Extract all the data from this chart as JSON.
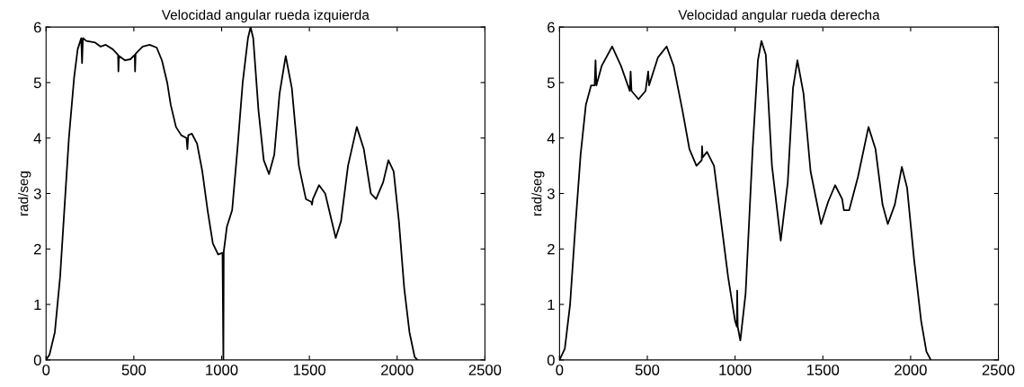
{
  "chart_data": [
    {
      "type": "line",
      "title": "Velocidad angular rueda izquierda",
      "ylabel": "rad/seg",
      "xlim": [
        0,
        2500
      ],
      "ylim": [
        0,
        6
      ],
      "xticks": [
        0,
        500,
        1000,
        1500,
        2000,
        2500
      ],
      "yticks": [
        0,
        1,
        2,
        3,
        4,
        5,
        6
      ],
      "grid": false,
      "legend": false,
      "marker": "none",
      "line_style": "solid",
      "series": [
        {
          "color": "#000000",
          "x": [
            0,
            20,
            50,
            80,
            100,
            130,
            160,
            180,
            200,
            205,
            210,
            230,
            280,
            310,
            340,
            380,
            410,
            412,
            415,
            450,
            480,
            505,
            507,
            510,
            550,
            590,
            630,
            660,
            690,
            710,
            740,
            770,
            800,
            805,
            810,
            830,
            860,
            890,
            920,
            950,
            980,
            1005,
            1010,
            1012,
            1030,
            1060,
            1090,
            1120,
            1150,
            1165,
            1180,
            1210,
            1240,
            1270,
            1300,
            1330,
            1365,
            1400,
            1440,
            1480,
            1510,
            1515,
            1520,
            1555,
            1590,
            1620,
            1650,
            1680,
            1720,
            1770,
            1810,
            1850,
            1880,
            1920,
            1950,
            1980,
            2010,
            2040,
            2070,
            2100,
            2115
          ],
          "values": [
            0,
            0.1,
            0.5,
            1.5,
            2.5,
            4,
            5.1,
            5.6,
            5.8,
            5.35,
            5.8,
            5.75,
            5.72,
            5.65,
            5.68,
            5.6,
            5.5,
            5.2,
            5.48,
            5.4,
            5.42,
            5.5,
            5.2,
            5.52,
            5.65,
            5.68,
            5.63,
            5.4,
            5.0,
            4.6,
            4.2,
            4.05,
            4.0,
            3.8,
            4.05,
            4.08,
            3.9,
            3.4,
            2.7,
            2.1,
            1.9,
            1.93,
            0,
            1.95,
            2.4,
            2.7,
            3.8,
            5.0,
            5.8,
            6.0,
            5.8,
            4.5,
            3.6,
            3.35,
            3.7,
            4.8,
            5.48,
            4.9,
            3.5,
            2.9,
            2.85,
            2.8,
            2.9,
            3.15,
            3.0,
            2.6,
            2.2,
            2.5,
            3.5,
            4.2,
            3.8,
            3.0,
            2.9,
            3.2,
            3.6,
            3.4,
            2.5,
            1.3,
            0.5,
            0.05,
            0
          ]
        }
      ]
    },
    {
      "type": "line",
      "title": "Velocidad angular rueda derecha",
      "ylabel": "rad/seg",
      "xlim": [
        0,
        2500
      ],
      "ylim": [
        0,
        6
      ],
      "xticks": [
        0,
        500,
        1000,
        1500,
        2000,
        2500
      ],
      "yticks": [
        0,
        1,
        2,
        3,
        4,
        5,
        6
      ],
      "grid": false,
      "legend": false,
      "marker": "none",
      "line_style": "solid",
      "series": [
        {
          "color": "#000000",
          "x": [
            0,
            30,
            60,
            90,
            120,
            150,
            180,
            200,
            205,
            210,
            240,
            300,
            350,
            400,
            405,
            410,
            450,
            490,
            505,
            510,
            560,
            610,
            650,
            700,
            740,
            780,
            810,
            812,
            815,
            840,
            880,
            920,
            960,
            1000,
            1010,
            1012,
            1015,
            1030,
            1060,
            1100,
            1130,
            1150,
            1175,
            1210,
            1260,
            1300,
            1330,
            1355,
            1390,
            1430,
            1490,
            1530,
            1570,
            1610,
            1620,
            1650,
            1700,
            1760,
            1800,
            1840,
            1870,
            1910,
            1950,
            1980,
            2020,
            2060,
            2090,
            2115
          ],
          "values": [
            0,
            0.2,
            1.0,
            2.4,
            3.7,
            4.6,
            4.95,
            4.95,
            5.4,
            4.95,
            5.3,
            5.65,
            5.3,
            4.85,
            5.2,
            4.85,
            4.7,
            4.85,
            5.2,
            4.95,
            5.45,
            5.65,
            5.3,
            4.5,
            3.8,
            3.5,
            3.6,
            3.85,
            3.65,
            3.75,
            3.5,
            2.5,
            1.5,
            0.7,
            0.6,
            1.25,
            0.6,
            0.35,
            1.2,
            3.8,
            5.4,
            5.75,
            5.5,
            3.5,
            2.15,
            3.2,
            4.9,
            5.4,
            4.8,
            3.4,
            2.45,
            2.85,
            3.15,
            2.9,
            2.7,
            2.7,
            3.3,
            4.2,
            3.8,
            2.8,
            2.45,
            2.8,
            3.48,
            3.1,
            1.8,
            0.7,
            0.15,
            0
          ]
        }
      ]
    }
  ]
}
